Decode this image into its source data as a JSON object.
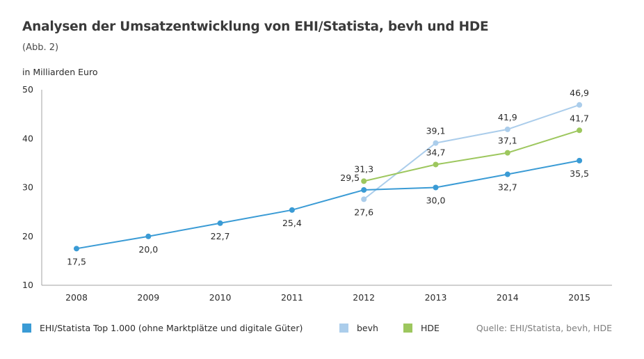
{
  "title": "Analysen der Umsatzentwicklung von EHI/Statista, bevh und HDE",
  "subtitle": "(Abb. 2)",
  "source": "Quelle: EHI/Statista, bevh, HDE",
  "chart_data": {
    "type": "line",
    "ylabel": "in Milliarden Euro",
    "ylim": [
      10,
      50
    ],
    "yticks": [
      "10",
      "20",
      "30",
      "40",
      "50"
    ],
    "categories": [
      "2008",
      "2009",
      "2010",
      "2011",
      "2012",
      "2013",
      "2014",
      "2015"
    ],
    "grid": false,
    "legend_position": "bottom",
    "series": [
      {
        "name": "EHI/Statista Top 1.000 (ohne Marktplätze und digitale Güter)",
        "color": "#3a9bd5",
        "values": [
          17.5,
          20.0,
          22.7,
          25.4,
          29.5,
          30.0,
          32.7,
          35.5
        ],
        "labels": [
          "17,5",
          "20,0",
          "22,7",
          "25,4",
          "29,5",
          "30,0",
          "32,7",
          "35,5"
        ]
      },
      {
        "name": "bevh",
        "color": "#abcdeb",
        "values": [
          null,
          null,
          null,
          null,
          27.6,
          39.1,
          41.9,
          46.9
        ],
        "labels": [
          null,
          null,
          null,
          null,
          "27,6",
          "39,1",
          "41,9",
          "46,9"
        ]
      },
      {
        "name": "HDE",
        "color": "#9dc75e",
        "values": [
          null,
          null,
          null,
          null,
          31.3,
          34.7,
          37.1,
          41.7
        ],
        "labels": [
          null,
          null,
          null,
          null,
          "31,3",
          "34,7",
          "37,1",
          "41,7"
        ]
      }
    ]
  }
}
